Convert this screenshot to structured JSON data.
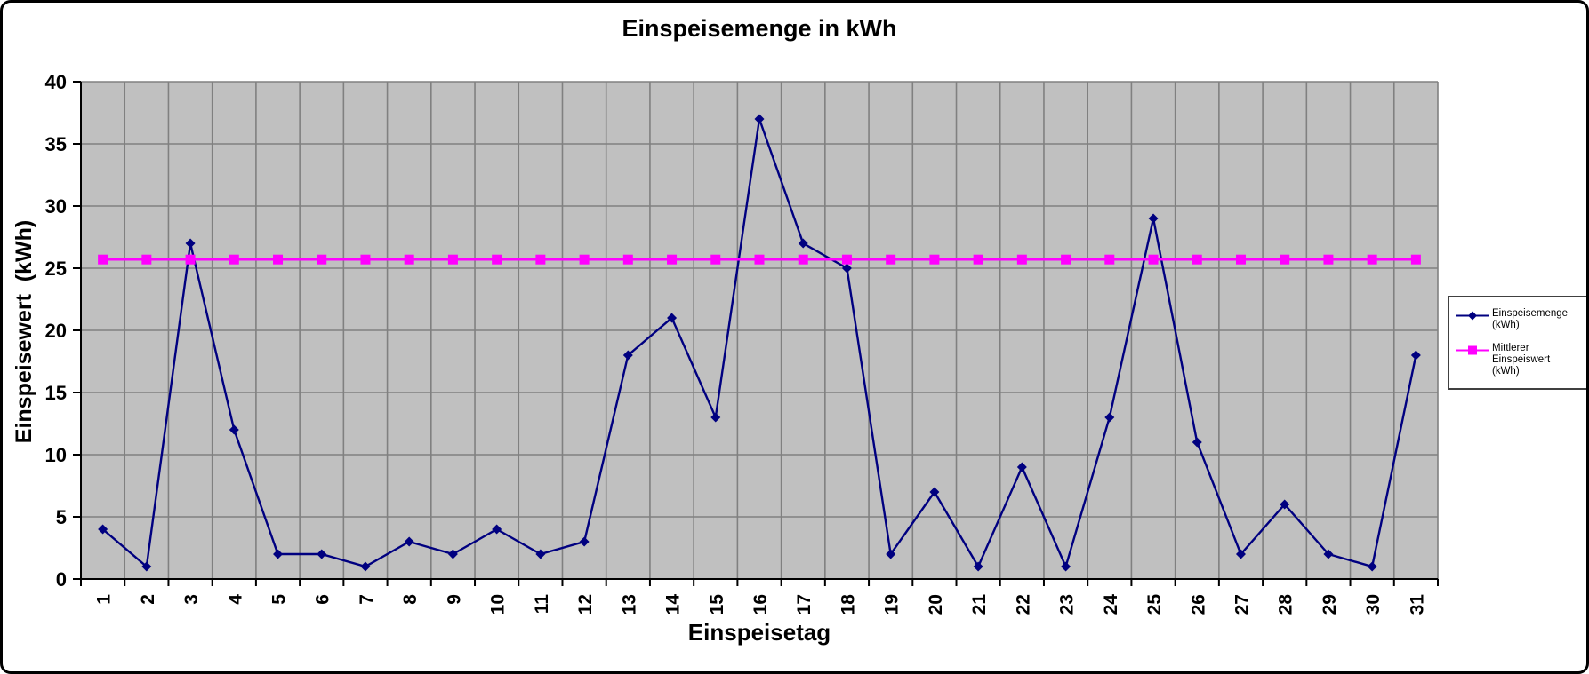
{
  "chart_data": {
    "type": "line",
    "title": "Einspeisemenge in kWh",
    "xlabel": "Einspeisetag",
    "ylabel": "Einspeisewert  (kWh)",
    "categories": [
      1,
      2,
      3,
      4,
      5,
      6,
      7,
      8,
      9,
      10,
      11,
      12,
      13,
      14,
      15,
      16,
      17,
      18,
      19,
      20,
      21,
      22,
      23,
      24,
      25,
      26,
      27,
      28,
      29,
      30,
      31
    ],
    "ylim": [
      0,
      40
    ],
    "yticks": [
      0,
      5,
      10,
      15,
      20,
      25,
      30,
      35,
      40
    ],
    "grid": "both",
    "legend_position": "right",
    "plot_bg": "#c0c0c0",
    "grid_color": "#808080",
    "axis_color": "#000000",
    "series": [
      {
        "name": "Einspeisemenge (kWh)",
        "color": "#000080",
        "marker": "diamond",
        "line_width": 2.4,
        "values": [
          4,
          1,
          27,
          12,
          2,
          2,
          1,
          3,
          2,
          4,
          2,
          3,
          18,
          21,
          13,
          37,
          27,
          25,
          2,
          7,
          1,
          9,
          1,
          13,
          29,
          11,
          2,
          6,
          2,
          1,
          18
        ]
      },
      {
        "name": "Mittlerer Einspeiswert (kWh)",
        "color": "#ff00ff",
        "marker": "square",
        "line_width": 2.6,
        "values": [
          25.7,
          25.7,
          25.7,
          25.7,
          25.7,
          25.7,
          25.7,
          25.7,
          25.7,
          25.7,
          25.7,
          25.7,
          25.7,
          25.7,
          25.7,
          25.7,
          25.7,
          25.7,
          25.7,
          25.7,
          25.7,
          25.7,
          25.7,
          25.7,
          25.7,
          25.7,
          25.7,
          25.7,
          25.7,
          25.7,
          25.7
        ]
      }
    ]
  },
  "legend": {
    "entries": [
      {
        "label": "Einspeisemenge\n(kWh)"
      },
      {
        "label": "Mittlerer Einspeiswert\n(kWh)"
      }
    ]
  }
}
